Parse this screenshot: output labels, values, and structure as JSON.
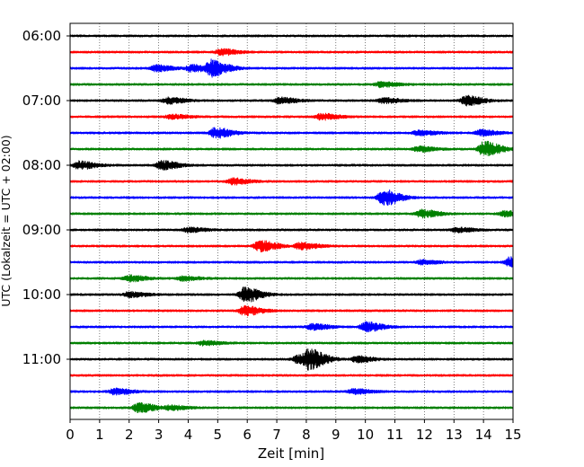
{
  "chart_data": {
    "type": "line",
    "chart_subtype": "helicorder / seismogram drum plot",
    "xlabel": "Zeit  [min]",
    "ylabel": "UTC (Lokalzeit = UTC + 02:00)",
    "xlim": [
      0,
      15
    ],
    "x_ticks": [
      0,
      1,
      2,
      3,
      4,
      5,
      6,
      7,
      8,
      9,
      10,
      11,
      12,
      13,
      14,
      15
    ],
    "x_tick_labels": [
      "0",
      "1",
      "2",
      "3",
      "4",
      "5",
      "6",
      "7",
      "8",
      "9",
      "10",
      "11",
      "12",
      "13",
      "14",
      "15"
    ],
    "y_tick_labels": [
      "06:00",
      "07:00",
      "08:00",
      "09:00",
      "10:00",
      "11:00"
    ],
    "grid": "vertical dotted lines at each minute",
    "trace_interval_minutes": 15,
    "color_cycle": [
      "#000000",
      "#ff0000",
      "#0000ff",
      "#008000"
    ],
    "traces": [
      {
        "start": "06:00",
        "color": "#000000",
        "events": []
      },
      {
        "start": "06:15",
        "color": "#ff0000",
        "events": [
          {
            "t": 5.1,
            "amp": 0.35
          }
        ]
      },
      {
        "start": "06:30",
        "color": "#0000ff",
        "events": [
          {
            "t": 2.9,
            "amp": 0.35
          },
          {
            "t": 4.1,
            "amp": 0.4
          },
          {
            "t": 4.8,
            "amp": 0.9
          }
        ]
      },
      {
        "start": "06:45",
        "color": "#008000",
        "events": [
          {
            "t": 10.5,
            "amp": 0.3
          }
        ]
      },
      {
        "start": "07:00",
        "color": "#000000",
        "events": [
          {
            "t": 3.3,
            "amp": 0.35
          },
          {
            "t": 7.1,
            "amp": 0.35
          },
          {
            "t": 10.6,
            "amp": 0.3
          },
          {
            "t": 13.4,
            "amp": 0.55
          }
        ]
      },
      {
        "start": "07:15",
        "color": "#ff0000",
        "events": [
          {
            "t": 3.4,
            "amp": 0.25
          },
          {
            "t": 8.5,
            "amp": 0.35
          }
        ]
      },
      {
        "start": "07:30",
        "color": "#0000ff",
        "events": [
          {
            "t": 4.9,
            "amp": 0.6
          },
          {
            "t": 11.8,
            "amp": 0.3
          },
          {
            "t": 13.9,
            "amp": 0.35
          }
        ]
      },
      {
        "start": "07:45",
        "color": "#008000",
        "events": [
          {
            "t": 11.8,
            "amp": 0.3
          },
          {
            "t": 14.0,
            "amp": 0.9
          }
        ]
      },
      {
        "start": "08:00",
        "color": "#000000",
        "events": [
          {
            "t": 0.3,
            "amp": 0.45
          },
          {
            "t": 3.1,
            "amp": 0.5
          }
        ]
      },
      {
        "start": "08:15",
        "color": "#ff0000",
        "events": [
          {
            "t": 5.5,
            "amp": 0.35
          }
        ]
      },
      {
        "start": "08:30",
        "color": "#0000ff",
        "events": [
          {
            "t": 10.6,
            "amp": 0.95
          }
        ]
      },
      {
        "start": "08:45",
        "color": "#008000",
        "events": [
          {
            "t": 11.9,
            "amp": 0.45
          },
          {
            "t": 14.7,
            "amp": 0.3
          }
        ]
      },
      {
        "start": "09:00",
        "color": "#000000",
        "events": [
          {
            "t": 4.0,
            "amp": 0.25
          },
          {
            "t": 13.1,
            "amp": 0.25
          }
        ]
      },
      {
        "start": "09:15",
        "color": "#ff0000",
        "events": [
          {
            "t": 6.4,
            "amp": 0.65
          },
          {
            "t": 7.8,
            "amp": 0.4
          }
        ]
      },
      {
        "start": "09:30",
        "color": "#0000ff",
        "events": [
          {
            "t": 11.9,
            "amp": 0.25
          },
          {
            "t": 14.9,
            "amp": 0.6
          }
        ]
      },
      {
        "start": "09:45",
        "color": "#008000",
        "events": [
          {
            "t": 2.0,
            "amp": 0.35
          },
          {
            "t": 3.8,
            "amp": 0.25
          }
        ]
      },
      {
        "start": "10:00",
        "color": "#000000",
        "events": [
          {
            "t": 2.0,
            "amp": 0.3
          },
          {
            "t": 5.9,
            "amp": 0.9
          }
        ]
      },
      {
        "start": "10:15",
        "color": "#ff0000",
        "events": [
          {
            "t": 5.9,
            "amp": 0.55
          }
        ]
      },
      {
        "start": "10:30",
        "color": "#0000ff",
        "events": [
          {
            "t": 8.2,
            "amp": 0.35
          },
          {
            "t": 10.0,
            "amp": 0.55
          }
        ]
      },
      {
        "start": "10:45",
        "color": "#008000",
        "events": [
          {
            "t": 4.5,
            "amp": 0.25
          }
        ]
      },
      {
        "start": "11:00",
        "color": "#000000",
        "events": [
          {
            "t": 7.7,
            "amp": 0.45
          },
          {
            "t": 8.1,
            "amp": 1.0
          },
          {
            "t": 9.7,
            "amp": 0.35
          }
        ]
      },
      {
        "start": "11:15",
        "color": "#ff0000",
        "events": []
      },
      {
        "start": "11:30",
        "color": "#0000ff",
        "events": [
          {
            "t": 1.5,
            "amp": 0.35
          },
          {
            "t": 9.6,
            "amp": 0.3
          }
        ]
      },
      {
        "start": "11:45",
        "color": "#008000",
        "events": [
          {
            "t": 2.3,
            "amp": 0.55
          },
          {
            "t": 3.4,
            "amp": 0.25
          }
        ]
      }
    ]
  }
}
